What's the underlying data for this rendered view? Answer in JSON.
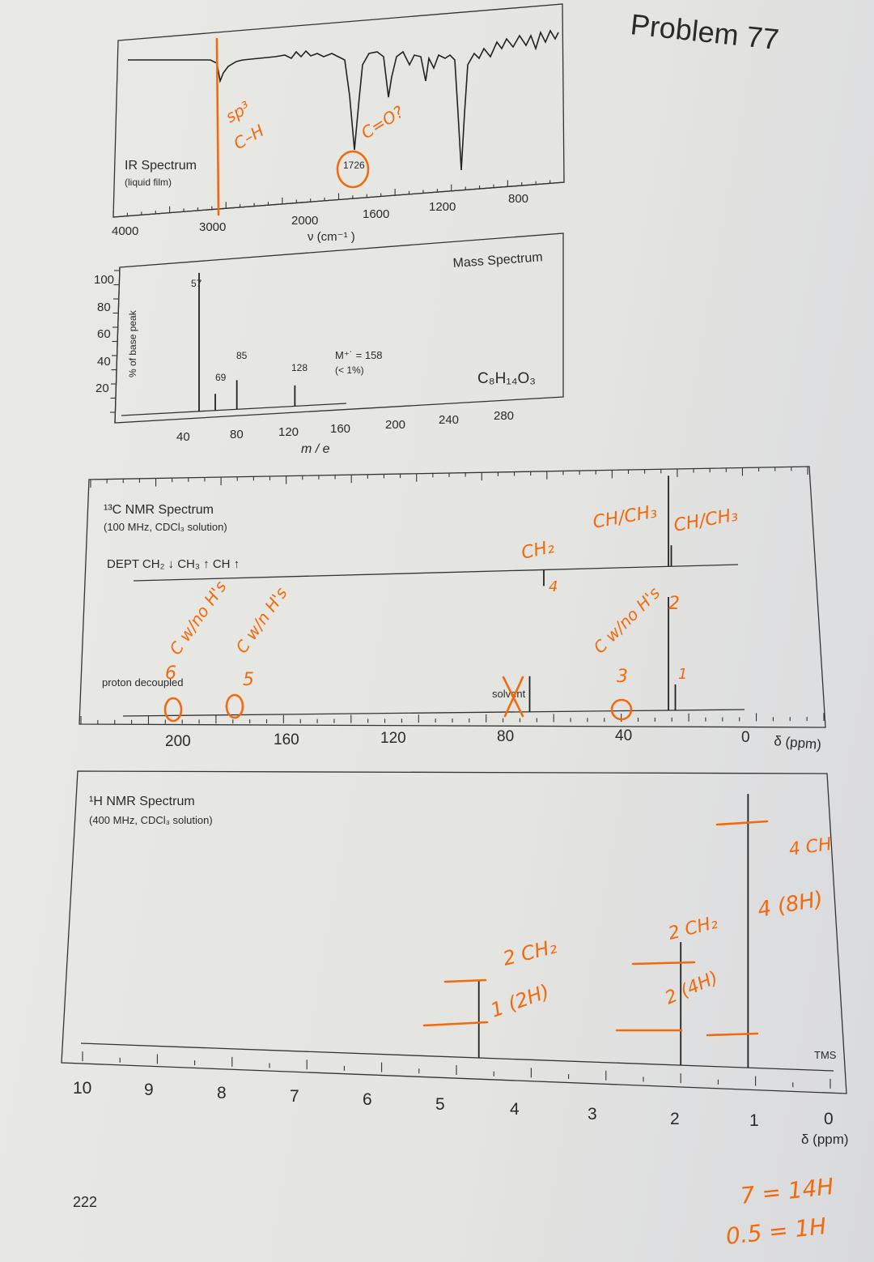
{
  "problem_title": "Problem 77",
  "page_number": "222",
  "colors": {
    "ink": "#222222",
    "annotation": "#f26a0c",
    "paper": "#e6e6e3"
  },
  "chart_data": [
    {
      "type": "line",
      "name": "ir",
      "title": "IR Spectrum",
      "subtitle": "(liquid film)",
      "xlabel": "ν (cm⁻¹ )",
      "x_ticks": [
        "4000",
        "3000",
        "2000",
        "1600",
        "1200",
        "800"
      ],
      "peak_label": "1726",
      "annotations": [
        "sp³",
        "C–H",
        "C=O?"
      ]
    },
    {
      "type": "bar",
      "name": "mass",
      "title": "Mass Spectrum",
      "xlabel": "m / e",
      "ylabel": "% of base peak",
      "x_ticks": [
        "40",
        "80",
        "120",
        "160",
        "200",
        "240",
        "280"
      ],
      "y_ticks": [
        "100",
        "80",
        "60",
        "40",
        "20"
      ],
      "formula": "C₈H₁₄O₃",
      "molecular_ion": "M⁺˙ = 158",
      "molecular_ion_note": "(< 1%)",
      "peaks": [
        {
          "mz": 57,
          "intensity": 100,
          "label": "57"
        },
        {
          "mz": 69,
          "intensity": 12,
          "label": "69"
        },
        {
          "mz": 85,
          "intensity": 21,
          "label": "85"
        },
        {
          "mz": 128,
          "intensity": 15,
          "label": "128"
        }
      ]
    },
    {
      "type": "bar",
      "name": "c13",
      "title": "¹³C NMR Spectrum",
      "subtitle": "(100 MHz, CDCl₃ solution)",
      "dept_label": "DEPT  CH₂ ↓  CH₃ ↑  CH ↑",
      "decoupled_label": "proton decoupled",
      "solvent_label": "solvent",
      "xlabel": "δ (ppm)",
      "x_ticks": [
        "200",
        "160",
        "120",
        "80",
        "40",
        "0"
      ],
      "peaks_ppm": [
        77,
        28,
        27
      ],
      "dept_peaks": [
        {
          "ppm": 72,
          "direction": "down"
        },
        {
          "ppm": 28,
          "direction": "up"
        },
        {
          "ppm": 27,
          "direction": "up"
        }
      ],
      "annotations": {
        "c6": "6",
        "c6_note": "C w/no H's",
        "c5": "5",
        "c5_note": "C w/n H's",
        "c3": "3",
        "c3_note": "C w/no H's",
        "c4": "4",
        "c4_label": "CH₂",
        "c2": "2",
        "c2_label": "CH/CH₃",
        "c1": "1",
        "c1_label": "CH/CH₃"
      }
    },
    {
      "type": "bar",
      "name": "h1",
      "title": "¹H NMR Spectrum",
      "subtitle": "(400 MHz, CDCl₃ solution)",
      "xlabel": "δ (ppm)",
      "x_ticks": [
        "10",
        "9",
        "8",
        "7",
        "6",
        "5",
        "4",
        "3",
        "2",
        "1",
        "0"
      ],
      "reference": "TMS",
      "peaks": [
        {
          "ppm": 4.7,
          "integration_note": "1 (2H)",
          "group": "2 CH₂"
        },
        {
          "ppm": 2.0,
          "integration_note": "2 (4H)",
          "group": "2 CH₂"
        },
        {
          "ppm": 1.1,
          "integration_note": "4 (8H)",
          "group": "4 CH"
        }
      ],
      "notes": [
        "7 = 14H",
        "0.5 = 1H"
      ]
    }
  ]
}
